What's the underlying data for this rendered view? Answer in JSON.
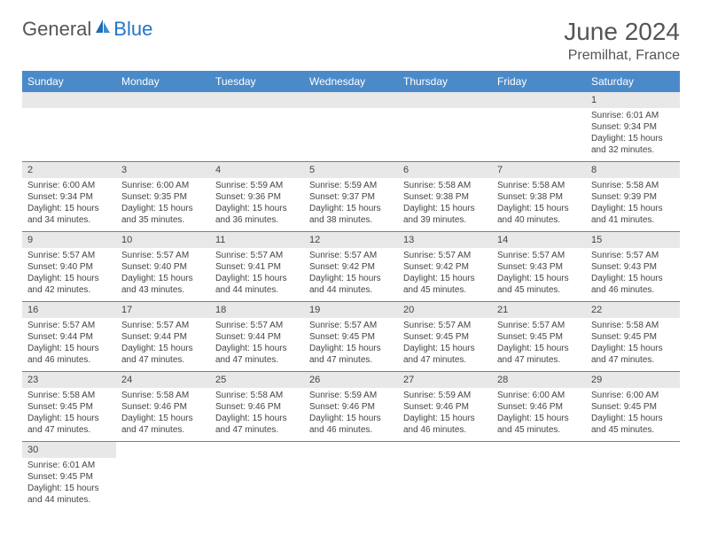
{
  "brand": {
    "part1": "General",
    "part2": "Blue"
  },
  "title": "June 2024",
  "location": "Premilhat, France",
  "colors": {
    "header_bg": "#4a8ac9",
    "header_text": "#ffffff",
    "daynum_bg": "#e8e8e8",
    "row_border": "#4a8ac9",
    "brand_blue": "#2176c7",
    "text": "#444444"
  },
  "weekdays": [
    "Sunday",
    "Monday",
    "Tuesday",
    "Wednesday",
    "Thursday",
    "Friday",
    "Saturday"
  ],
  "weeks": [
    [
      null,
      null,
      null,
      null,
      null,
      null,
      {
        "n": "1",
        "sr": "Sunrise: 6:01 AM",
        "ss": "Sunset: 9:34 PM",
        "d1": "Daylight: 15 hours",
        "d2": "and 32 minutes."
      }
    ],
    [
      {
        "n": "2",
        "sr": "Sunrise: 6:00 AM",
        "ss": "Sunset: 9:34 PM",
        "d1": "Daylight: 15 hours",
        "d2": "and 34 minutes."
      },
      {
        "n": "3",
        "sr": "Sunrise: 6:00 AM",
        "ss": "Sunset: 9:35 PM",
        "d1": "Daylight: 15 hours",
        "d2": "and 35 minutes."
      },
      {
        "n": "4",
        "sr": "Sunrise: 5:59 AM",
        "ss": "Sunset: 9:36 PM",
        "d1": "Daylight: 15 hours",
        "d2": "and 36 minutes."
      },
      {
        "n": "5",
        "sr": "Sunrise: 5:59 AM",
        "ss": "Sunset: 9:37 PM",
        "d1": "Daylight: 15 hours",
        "d2": "and 38 minutes."
      },
      {
        "n": "6",
        "sr": "Sunrise: 5:58 AM",
        "ss": "Sunset: 9:38 PM",
        "d1": "Daylight: 15 hours",
        "d2": "and 39 minutes."
      },
      {
        "n": "7",
        "sr": "Sunrise: 5:58 AM",
        "ss": "Sunset: 9:38 PM",
        "d1": "Daylight: 15 hours",
        "d2": "and 40 minutes."
      },
      {
        "n": "8",
        "sr": "Sunrise: 5:58 AM",
        "ss": "Sunset: 9:39 PM",
        "d1": "Daylight: 15 hours",
        "d2": "and 41 minutes."
      }
    ],
    [
      {
        "n": "9",
        "sr": "Sunrise: 5:57 AM",
        "ss": "Sunset: 9:40 PM",
        "d1": "Daylight: 15 hours",
        "d2": "and 42 minutes."
      },
      {
        "n": "10",
        "sr": "Sunrise: 5:57 AM",
        "ss": "Sunset: 9:40 PM",
        "d1": "Daylight: 15 hours",
        "d2": "and 43 minutes."
      },
      {
        "n": "11",
        "sr": "Sunrise: 5:57 AM",
        "ss": "Sunset: 9:41 PM",
        "d1": "Daylight: 15 hours",
        "d2": "and 44 minutes."
      },
      {
        "n": "12",
        "sr": "Sunrise: 5:57 AM",
        "ss": "Sunset: 9:42 PM",
        "d1": "Daylight: 15 hours",
        "d2": "and 44 minutes."
      },
      {
        "n": "13",
        "sr": "Sunrise: 5:57 AM",
        "ss": "Sunset: 9:42 PM",
        "d1": "Daylight: 15 hours",
        "d2": "and 45 minutes."
      },
      {
        "n": "14",
        "sr": "Sunrise: 5:57 AM",
        "ss": "Sunset: 9:43 PM",
        "d1": "Daylight: 15 hours",
        "d2": "and 45 minutes."
      },
      {
        "n": "15",
        "sr": "Sunrise: 5:57 AM",
        "ss": "Sunset: 9:43 PM",
        "d1": "Daylight: 15 hours",
        "d2": "and 46 minutes."
      }
    ],
    [
      {
        "n": "16",
        "sr": "Sunrise: 5:57 AM",
        "ss": "Sunset: 9:44 PM",
        "d1": "Daylight: 15 hours",
        "d2": "and 46 minutes."
      },
      {
        "n": "17",
        "sr": "Sunrise: 5:57 AM",
        "ss": "Sunset: 9:44 PM",
        "d1": "Daylight: 15 hours",
        "d2": "and 47 minutes."
      },
      {
        "n": "18",
        "sr": "Sunrise: 5:57 AM",
        "ss": "Sunset: 9:44 PM",
        "d1": "Daylight: 15 hours",
        "d2": "and 47 minutes."
      },
      {
        "n": "19",
        "sr": "Sunrise: 5:57 AM",
        "ss": "Sunset: 9:45 PM",
        "d1": "Daylight: 15 hours",
        "d2": "and 47 minutes."
      },
      {
        "n": "20",
        "sr": "Sunrise: 5:57 AM",
        "ss": "Sunset: 9:45 PM",
        "d1": "Daylight: 15 hours",
        "d2": "and 47 minutes."
      },
      {
        "n": "21",
        "sr": "Sunrise: 5:57 AM",
        "ss": "Sunset: 9:45 PM",
        "d1": "Daylight: 15 hours",
        "d2": "and 47 minutes."
      },
      {
        "n": "22",
        "sr": "Sunrise: 5:58 AM",
        "ss": "Sunset: 9:45 PM",
        "d1": "Daylight: 15 hours",
        "d2": "and 47 minutes."
      }
    ],
    [
      {
        "n": "23",
        "sr": "Sunrise: 5:58 AM",
        "ss": "Sunset: 9:45 PM",
        "d1": "Daylight: 15 hours",
        "d2": "and 47 minutes."
      },
      {
        "n": "24",
        "sr": "Sunrise: 5:58 AM",
        "ss": "Sunset: 9:46 PM",
        "d1": "Daylight: 15 hours",
        "d2": "and 47 minutes."
      },
      {
        "n": "25",
        "sr": "Sunrise: 5:58 AM",
        "ss": "Sunset: 9:46 PM",
        "d1": "Daylight: 15 hours",
        "d2": "and 47 minutes."
      },
      {
        "n": "26",
        "sr": "Sunrise: 5:59 AM",
        "ss": "Sunset: 9:46 PM",
        "d1": "Daylight: 15 hours",
        "d2": "and 46 minutes."
      },
      {
        "n": "27",
        "sr": "Sunrise: 5:59 AM",
        "ss": "Sunset: 9:46 PM",
        "d1": "Daylight: 15 hours",
        "d2": "and 46 minutes."
      },
      {
        "n": "28",
        "sr": "Sunrise: 6:00 AM",
        "ss": "Sunset: 9:46 PM",
        "d1": "Daylight: 15 hours",
        "d2": "and 45 minutes."
      },
      {
        "n": "29",
        "sr": "Sunrise: 6:00 AM",
        "ss": "Sunset: 9:45 PM",
        "d1": "Daylight: 15 hours",
        "d2": "and 45 minutes."
      }
    ],
    [
      {
        "n": "30",
        "sr": "Sunrise: 6:01 AM",
        "ss": "Sunset: 9:45 PM",
        "d1": "Daylight: 15 hours",
        "d2": "and 44 minutes."
      },
      null,
      null,
      null,
      null,
      null,
      null
    ]
  ]
}
